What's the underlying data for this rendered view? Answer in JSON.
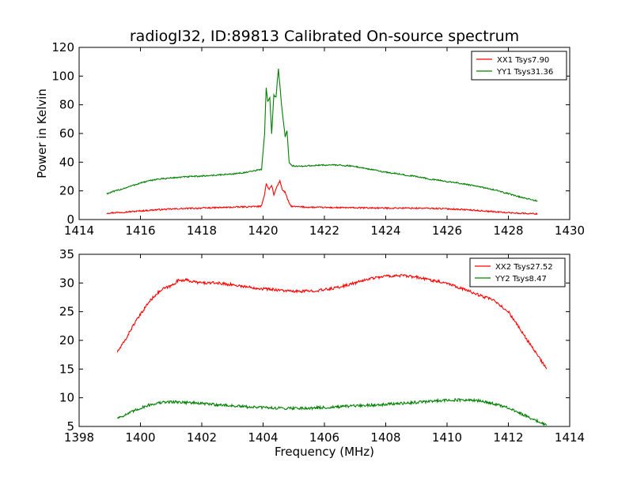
{
  "figure": {
    "title": "radiogl32, ID:89813 Calibrated On-source spectrum"
  },
  "chart_data": [
    {
      "type": "line",
      "title": "radiogl32, ID:89813 Calibrated On-source spectrum",
      "xlabel": "",
      "ylabel": "Power in Kelvin",
      "xlim": [
        1414,
        1430
      ],
      "ylim": [
        0,
        120
      ],
      "xticks": [
        1414,
        1416,
        1418,
        1420,
        1422,
        1424,
        1426,
        1428,
        1430
      ],
      "yticks": [
        0,
        20,
        40,
        60,
        80,
        100,
        120
      ],
      "grid": false,
      "legend_position": "top-right",
      "series": [
        {
          "name": "XX1 Tsys7.90",
          "color": "#ff0000",
          "points": [
            [
              1414.9,
              4.5
            ],
            [
              1415.5,
              5.2
            ],
            [
              1416.0,
              6.0
            ],
            [
              1416.5,
              6.8
            ],
            [
              1417.0,
              7.3
            ],
            [
              1417.5,
              7.7
            ],
            [
              1418.0,
              8.0
            ],
            [
              1418.5,
              8.3
            ],
            [
              1419.0,
              8.6
            ],
            [
              1419.5,
              8.9
            ],
            [
              1419.95,
              9.2
            ],
            [
              1420.05,
              18
            ],
            [
              1420.1,
              25
            ],
            [
              1420.2,
              21
            ],
            [
              1420.28,
              24
            ],
            [
              1420.35,
              17
            ],
            [
              1420.45,
              23
            ],
            [
              1420.55,
              27
            ],
            [
              1420.62,
              21
            ],
            [
              1420.72,
              19
            ],
            [
              1420.8,
              14
            ],
            [
              1420.9,
              9.5
            ],
            [
              1421.0,
              9.0
            ],
            [
              1421.5,
              8.6
            ],
            [
              1422.0,
              8.4
            ],
            [
              1422.5,
              8.3
            ],
            [
              1423.0,
              8.2
            ],
            [
              1423.5,
              8.1
            ],
            [
              1424.0,
              8.0
            ],
            [
              1424.5,
              8.0
            ],
            [
              1425.0,
              7.9
            ],
            [
              1425.5,
              7.8
            ],
            [
              1426.0,
              7.5
            ],
            [
              1426.5,
              7.0
            ],
            [
              1427.0,
              6.3
            ],
            [
              1427.5,
              5.5
            ],
            [
              1428.0,
              4.8
            ],
            [
              1428.5,
              4.3
            ],
            [
              1428.95,
              4.0
            ]
          ]
        },
        {
          "name": "YY1 Tsys31.36",
          "color": "#008000",
          "points": [
            [
              1414.9,
              18
            ],
            [
              1415.2,
              20
            ],
            [
              1415.5,
              22
            ],
            [
              1416.0,
              25.5
            ],
            [
              1416.5,
              28
            ],
            [
              1417.0,
              29
            ],
            [
              1417.5,
              29.8
            ],
            [
              1418.0,
              30.3
            ],
            [
              1418.5,
              31
            ],
            [
              1419.0,
              31.8
            ],
            [
              1419.5,
              33
            ],
            [
              1419.95,
              35
            ],
            [
              1420.05,
              60
            ],
            [
              1420.1,
              92
            ],
            [
              1420.15,
              82
            ],
            [
              1420.22,
              85
            ],
            [
              1420.28,
              60
            ],
            [
              1420.35,
              87
            ],
            [
              1420.42,
              85
            ],
            [
              1420.5,
              105
            ],
            [
              1420.55,
              93
            ],
            [
              1420.62,
              76
            ],
            [
              1420.72,
              58
            ],
            [
              1420.78,
              62
            ],
            [
              1420.85,
              40
            ],
            [
              1420.95,
              37.5
            ],
            [
              1421.2,
              37
            ],
            [
              1421.5,
              37.5
            ],
            [
              1422.0,
              38
            ],
            [
              1422.5,
              38
            ],
            [
              1423.0,
              37
            ],
            [
              1423.5,
              35
            ],
            [
              1424.0,
              33
            ],
            [
              1424.5,
              31.5
            ],
            [
              1425.0,
              30
            ],
            [
              1425.5,
              28
            ],
            [
              1426.0,
              26.5
            ],
            [
              1426.5,
              25
            ],
            [
              1427.0,
              23
            ],
            [
              1427.5,
              21
            ],
            [
              1428.0,
              18
            ],
            [
              1428.5,
              15
            ],
            [
              1428.95,
              13
            ]
          ]
        }
      ]
    },
    {
      "type": "line",
      "title": "",
      "xlabel": "Frequency (MHz)",
      "ylabel": "",
      "xlim": [
        1398,
        1414
      ],
      "ylim": [
        5,
        35
      ],
      "xticks": [
        1398,
        1400,
        1402,
        1404,
        1406,
        1408,
        1410,
        1412,
        1414
      ],
      "yticks": [
        5,
        10,
        15,
        20,
        25,
        30,
        35
      ],
      "grid": false,
      "legend_position": "top-right",
      "series": [
        {
          "name": "XX2 Tsys27.52",
          "color": "#ff0000",
          "points": [
            [
              1399.25,
              18
            ],
            [
              1399.5,
              20
            ],
            [
              1399.75,
              22.5
            ],
            [
              1400.0,
              24.5
            ],
            [
              1400.25,
              26.5
            ],
            [
              1400.5,
              28
            ],
            [
              1400.75,
              29
            ],
            [
              1401.0,
              29.5
            ],
            [
              1401.25,
              30.5
            ],
            [
              1401.5,
              30.5
            ],
            [
              1401.75,
              30.2
            ],
            [
              1402.0,
              30
            ],
            [
              1402.5,
              30
            ],
            [
              1403.0,
              29.7
            ],
            [
              1403.5,
              29.3
            ],
            [
              1404.0,
              29
            ],
            [
              1404.5,
              28.8
            ],
            [
              1405.0,
              28.5
            ],
            [
              1405.5,
              28.6
            ],
            [
              1406.0,
              28.8
            ],
            [
              1406.5,
              29.3
            ],
            [
              1407.0,
              30
            ],
            [
              1407.5,
              30.8
            ],
            [
              1408.0,
              31.2
            ],
            [
              1408.5,
              31.3
            ],
            [
              1409.0,
              31
            ],
            [
              1409.5,
              30.5
            ],
            [
              1410.0,
              30
            ],
            [
              1410.5,
              29
            ],
            [
              1411.0,
              28
            ],
            [
              1411.5,
              27
            ],
            [
              1412.0,
              25
            ],
            [
              1412.25,
              23
            ],
            [
              1412.5,
              21
            ],
            [
              1412.75,
              19
            ],
            [
              1413.0,
              17
            ],
            [
              1413.25,
              15
            ]
          ]
        },
        {
          "name": "YY2 Tsys8.47",
          "color": "#008000",
          "points": [
            [
              1399.25,
              6.5
            ],
            [
              1399.5,
              7.0
            ],
            [
              1399.75,
              7.6
            ],
            [
              1400.0,
              8.2
            ],
            [
              1400.25,
              8.7
            ],
            [
              1400.5,
              9.0
            ],
            [
              1400.75,
              9.2
            ],
            [
              1401.0,
              9.3
            ],
            [
              1401.5,
              9.2
            ],
            [
              1402.0,
              9.0
            ],
            [
              1402.5,
              8.8
            ],
            [
              1403.0,
              8.6
            ],
            [
              1403.5,
              8.4
            ],
            [
              1404.0,
              8.3
            ],
            [
              1404.5,
              8.2
            ],
            [
              1405.0,
              8.2
            ],
            [
              1405.5,
              8.2
            ],
            [
              1406.0,
              8.3
            ],
            [
              1406.5,
              8.4
            ],
            [
              1407.0,
              8.6
            ],
            [
              1407.5,
              8.7
            ],
            [
              1408.0,
              8.9
            ],
            [
              1408.5,
              9.0
            ],
            [
              1409.0,
              9.2
            ],
            [
              1409.5,
              9.4
            ],
            [
              1410.0,
              9.6
            ],
            [
              1410.5,
              9.6
            ],
            [
              1411.0,
              9.5
            ],
            [
              1411.5,
              9.0
            ],
            [
              1412.0,
              8.2
            ],
            [
              1412.5,
              7.0
            ],
            [
              1413.0,
              5.8
            ],
            [
              1413.25,
              5.2
            ]
          ]
        }
      ]
    }
  ]
}
